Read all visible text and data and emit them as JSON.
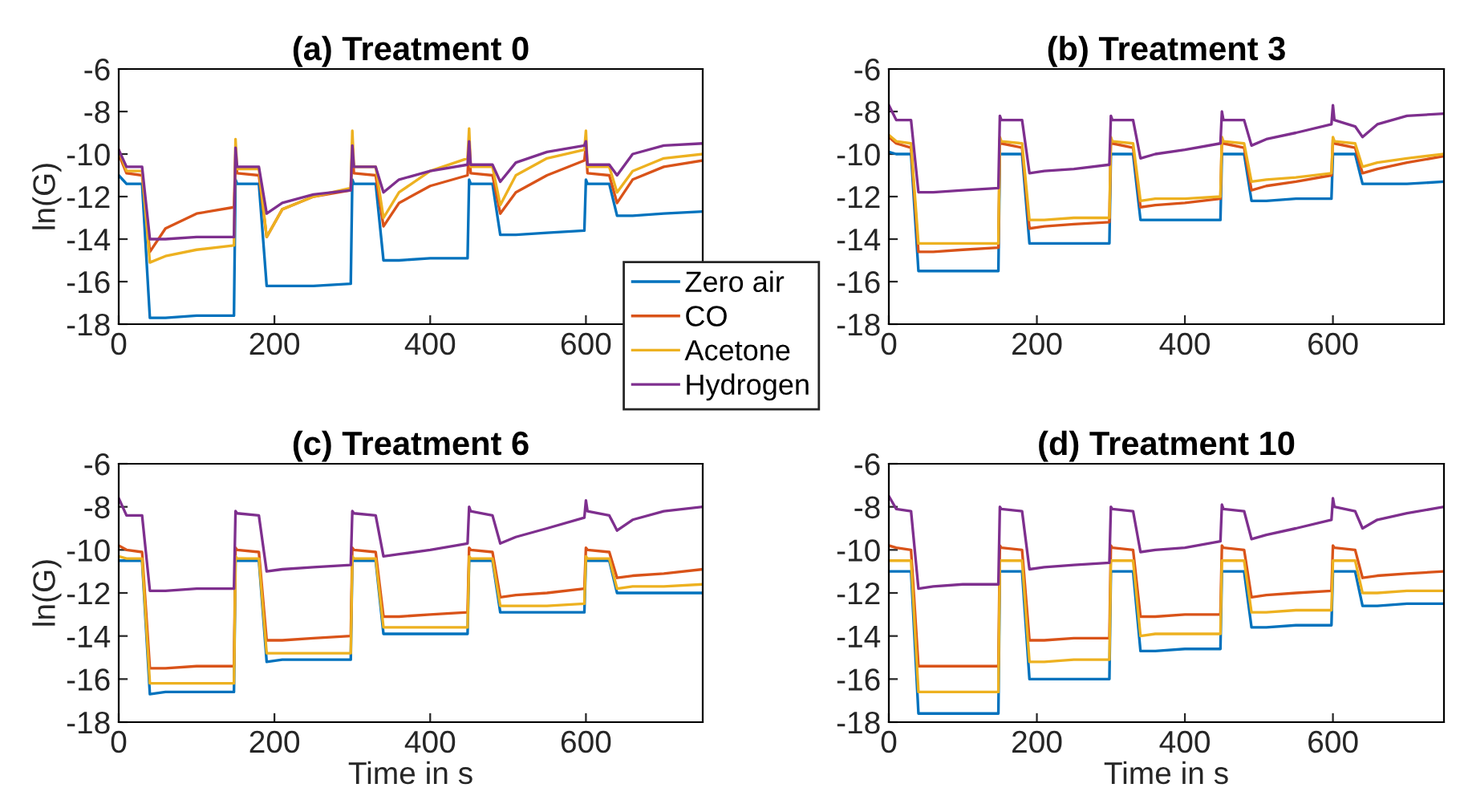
{
  "chart_data": [
    {
      "type": "line",
      "title": "(a) Treatment 0",
      "ylabel": "ln(G)",
      "xlim": [
        0,
        750
      ],
      "xticks": [
        0,
        200,
        400,
        600
      ],
      "ylim": [
        -18,
        -6
      ],
      "yticks": [
        -18,
        -16,
        -14,
        -12,
        -10,
        -8,
        -6
      ],
      "legend": "bottom right",
      "x": [
        0,
        10,
        30,
        40,
        60,
        100,
        148,
        150,
        152,
        180,
        190,
        210,
        250,
        298,
        300,
        302,
        330,
        340,
        360,
        400,
        448,
        450,
        452,
        480,
        490,
        510,
        550,
        598,
        600,
        602,
        630,
        640,
        660,
        700,
        750
      ],
      "series": [
        {
          "name": "Zero air",
          "color": "#0072bd",
          "values": [
            -11.0,
            -11.4,
            -11.4,
            -17.7,
            -17.7,
            -17.6,
            -17.6,
            -11.2,
            -11.4,
            -11.4,
            -16.2,
            -16.2,
            -16.2,
            -16.1,
            -11.2,
            -11.4,
            -11.4,
            -15.0,
            -15.0,
            -14.9,
            -14.9,
            -11.2,
            -11.4,
            -11.4,
            -13.8,
            -13.8,
            -13.7,
            -13.6,
            -11.2,
            -11.4,
            -11.4,
            -12.9,
            -12.9,
            -12.8,
            -12.7
          ]
        },
        {
          "name": "CO",
          "color": "#d95319",
          "values": [
            -10.0,
            -10.9,
            -11.0,
            -14.6,
            -13.5,
            -12.8,
            -12.5,
            -10.0,
            -10.9,
            -11.0,
            -13.9,
            -12.6,
            -12.0,
            -11.7,
            -9.6,
            -10.9,
            -11.0,
            -13.4,
            -12.3,
            -11.5,
            -11.0,
            -9.6,
            -10.9,
            -11.0,
            -12.8,
            -11.8,
            -11.0,
            -10.3,
            -9.6,
            -10.9,
            -11.0,
            -12.3,
            -11.2,
            -10.6,
            -10.3
          ]
        },
        {
          "name": "Acetone",
          "color": "#edb120",
          "values": [
            -9.8,
            -10.8,
            -10.8,
            -15.1,
            -14.8,
            -14.5,
            -14.3,
            -9.3,
            -10.7,
            -10.7,
            -13.9,
            -12.6,
            -12.0,
            -11.6,
            -8.9,
            -10.6,
            -10.6,
            -13.0,
            -11.8,
            -10.8,
            -10.2,
            -8.8,
            -10.6,
            -10.6,
            -12.4,
            -11.0,
            -10.2,
            -9.8,
            -8.9,
            -10.6,
            -10.6,
            -11.8,
            -10.8,
            -10.2,
            -10.0
          ]
        },
        {
          "name": "Hydrogen",
          "color": "#7e2f8e",
          "values": [
            -9.8,
            -10.6,
            -10.6,
            -14.0,
            -14.0,
            -13.9,
            -13.9,
            -9.7,
            -10.6,
            -10.6,
            -12.8,
            -12.3,
            -11.9,
            -11.7,
            -9.6,
            -10.6,
            -10.6,
            -11.8,
            -11.2,
            -10.8,
            -10.5,
            -9.4,
            -10.5,
            -10.5,
            -11.3,
            -10.4,
            -9.9,
            -9.6,
            -9.4,
            -10.5,
            -10.5,
            -11.0,
            -10.0,
            -9.6,
            -9.5
          ]
        }
      ]
    },
    {
      "type": "line",
      "title": "(b) Treatment 3",
      "xlim": [
        0,
        750
      ],
      "xticks": [
        0,
        200,
        400,
        600
      ],
      "ylim": [
        -18,
        -6
      ],
      "yticks": [
        -18,
        -16,
        -14,
        -12,
        -10,
        -8,
        -6
      ],
      "x": [
        0,
        10,
        30,
        40,
        60,
        100,
        148,
        150,
        152,
        180,
        190,
        210,
        250,
        298,
        300,
        302,
        330,
        340,
        360,
        400,
        448,
        450,
        452,
        480,
        490,
        510,
        550,
        598,
        600,
        602,
        630,
        640,
        660,
        700,
        750
      ],
      "series": [
        {
          "color": "#0072bd",
          "values": [
            -9.9,
            -10.0,
            -10.0,
            -15.5,
            -15.5,
            -15.5,
            -15.5,
            -10.0,
            -10.0,
            -10.0,
            -14.2,
            -14.2,
            -14.2,
            -14.2,
            -10.0,
            -10.0,
            -10.0,
            -13.1,
            -13.1,
            -13.1,
            -13.1,
            -10.0,
            -10.0,
            -10.0,
            -12.2,
            -12.2,
            -12.1,
            -12.1,
            -10.0,
            -10.0,
            -10.0,
            -11.4,
            -11.4,
            -11.4,
            -11.3
          ]
        },
        {
          "color": "#d95319",
          "values": [
            -9.2,
            -9.5,
            -9.7,
            -14.6,
            -14.6,
            -14.5,
            -14.4,
            -9.3,
            -9.5,
            -9.7,
            -13.5,
            -13.4,
            -13.3,
            -13.2,
            -9.3,
            -9.5,
            -9.7,
            -12.5,
            -12.4,
            -12.3,
            -12.1,
            -9.3,
            -9.5,
            -9.7,
            -11.7,
            -11.5,
            -11.3,
            -11.0,
            -9.3,
            -9.5,
            -9.7,
            -10.9,
            -10.7,
            -10.4,
            -10.1
          ]
        },
        {
          "color": "#edb120",
          "values": [
            -9.1,
            -9.4,
            -9.5,
            -14.2,
            -14.2,
            -14.2,
            -14.2,
            -9.2,
            -9.4,
            -9.5,
            -13.1,
            -13.1,
            -13.0,
            -13.0,
            -9.2,
            -9.4,
            -9.5,
            -12.2,
            -12.1,
            -12.1,
            -12.0,
            -9.2,
            -9.4,
            -9.5,
            -11.3,
            -11.2,
            -11.1,
            -10.9,
            -9.2,
            -9.4,
            -9.5,
            -10.6,
            -10.4,
            -10.2,
            -10.0
          ]
        },
        {
          "color": "#7e2f8e",
          "values": [
            -7.7,
            -8.4,
            -8.4,
            -11.8,
            -11.8,
            -11.7,
            -11.6,
            -8.2,
            -8.4,
            -8.4,
            -10.9,
            -10.8,
            -10.7,
            -10.5,
            -8.2,
            -8.4,
            -8.4,
            -10.2,
            -10.0,
            -9.8,
            -9.5,
            -8.0,
            -8.4,
            -8.4,
            -9.6,
            -9.3,
            -9.0,
            -8.6,
            -7.7,
            -8.4,
            -8.7,
            -9.2,
            -8.6,
            -8.2,
            -8.1
          ]
        }
      ]
    },
    {
      "type": "line",
      "title": "(c) Treatment 6",
      "ylabel": "ln(G)",
      "xlabel": "Time in s",
      "xlim": [
        0,
        750
      ],
      "xticks": [
        0,
        200,
        400,
        600
      ],
      "ylim": [
        -18,
        -6
      ],
      "yticks": [
        -18,
        -16,
        -14,
        -12,
        -10,
        -8,
        -6
      ],
      "x": [
        0,
        10,
        30,
        40,
        60,
        100,
        148,
        150,
        152,
        180,
        190,
        210,
        250,
        298,
        300,
        302,
        330,
        340,
        360,
        400,
        448,
        450,
        452,
        480,
        490,
        510,
        550,
        598,
        600,
        602,
        630,
        640,
        660,
        700,
        750
      ],
      "series": [
        {
          "color": "#0072bd",
          "values": [
            -10.5,
            -10.5,
            -10.5,
            -16.7,
            -16.6,
            -16.6,
            -16.6,
            -10.5,
            -10.5,
            -10.5,
            -15.2,
            -15.1,
            -15.1,
            -15.1,
            -10.5,
            -10.5,
            -10.5,
            -13.9,
            -13.9,
            -13.9,
            -13.9,
            -10.5,
            -10.5,
            -10.5,
            -12.9,
            -12.9,
            -12.9,
            -12.9,
            -10.5,
            -10.5,
            -10.5,
            -12.0,
            -12.0,
            -12.0,
            -12.0
          ]
        },
        {
          "color": "#d95319",
          "values": [
            -9.8,
            -10.0,
            -10.1,
            -15.5,
            -15.5,
            -15.4,
            -15.4,
            -9.9,
            -10.0,
            -10.1,
            -14.2,
            -14.2,
            -14.1,
            -14.0,
            -9.9,
            -10.0,
            -10.1,
            -13.1,
            -13.1,
            -13.0,
            -12.9,
            -9.9,
            -10.0,
            -10.1,
            -12.2,
            -12.1,
            -12.0,
            -11.8,
            -9.9,
            -10.0,
            -10.1,
            -11.3,
            -11.2,
            -11.1,
            -10.9
          ]
        },
        {
          "color": "#edb120",
          "values": [
            -10.3,
            -10.4,
            -10.4,
            -16.2,
            -16.2,
            -16.2,
            -16.2,
            -10.3,
            -10.4,
            -10.4,
            -14.8,
            -14.8,
            -14.8,
            -14.8,
            -10.3,
            -10.4,
            -10.4,
            -13.6,
            -13.6,
            -13.6,
            -13.6,
            -10.3,
            -10.4,
            -10.4,
            -12.6,
            -12.6,
            -12.6,
            -12.5,
            -10.3,
            -10.4,
            -10.4,
            -11.8,
            -11.7,
            -11.7,
            -11.6
          ]
        },
        {
          "color": "#7e2f8e",
          "values": [
            -7.6,
            -8.4,
            -8.4,
            -11.9,
            -11.9,
            -11.8,
            -11.8,
            -8.2,
            -8.3,
            -8.4,
            -11.0,
            -10.9,
            -10.8,
            -10.7,
            -8.2,
            -8.3,
            -8.4,
            -10.3,
            -10.2,
            -10.0,
            -9.7,
            -8.0,
            -8.2,
            -8.4,
            -9.7,
            -9.4,
            -9.0,
            -8.5,
            -7.7,
            -8.2,
            -8.4,
            -9.1,
            -8.6,
            -8.2,
            -8.0
          ]
        }
      ]
    },
    {
      "type": "line",
      "title": "(d) Treatment 10",
      "xlabel": "Time in s",
      "xlim": [
        0,
        750
      ],
      "xticks": [
        0,
        200,
        400,
        600
      ],
      "ylim": [
        -18,
        -6
      ],
      "yticks": [
        -18,
        -16,
        -14,
        -12,
        -10,
        -8,
        -6
      ],
      "x": [
        0,
        10,
        30,
        40,
        60,
        100,
        148,
        150,
        152,
        180,
        190,
        210,
        250,
        298,
        300,
        302,
        330,
        340,
        360,
        400,
        448,
        450,
        452,
        480,
        490,
        510,
        550,
        598,
        600,
        602,
        630,
        640,
        660,
        700,
        750
      ],
      "series": [
        {
          "color": "#0072bd",
          "values": [
            -11.0,
            -11.0,
            -11.0,
            -17.6,
            -17.6,
            -17.6,
            -17.6,
            -11.0,
            -11.0,
            -11.0,
            -16.0,
            -16.0,
            -16.0,
            -16.0,
            -11.0,
            -11.0,
            -11.0,
            -14.7,
            -14.7,
            -14.6,
            -14.6,
            -11.0,
            -11.0,
            -11.0,
            -13.6,
            -13.6,
            -13.5,
            -13.5,
            -11.0,
            -11.0,
            -11.0,
            -12.6,
            -12.6,
            -12.5,
            -12.5
          ]
        },
        {
          "color": "#d95319",
          "values": [
            -9.8,
            -9.9,
            -10.0,
            -15.4,
            -15.4,
            -15.4,
            -15.4,
            -9.8,
            -9.9,
            -10.0,
            -14.2,
            -14.2,
            -14.1,
            -14.1,
            -9.8,
            -9.9,
            -10.0,
            -13.1,
            -13.1,
            -13.0,
            -13.0,
            -9.8,
            -9.9,
            -10.0,
            -12.2,
            -12.1,
            -12.0,
            -11.9,
            -9.8,
            -9.9,
            -10.0,
            -11.3,
            -11.2,
            -11.1,
            -11.0
          ]
        },
        {
          "color": "#edb120",
          "values": [
            -10.5,
            -10.5,
            -10.5,
            -16.6,
            -16.6,
            -16.6,
            -16.6,
            -10.5,
            -10.5,
            -10.5,
            -15.2,
            -15.2,
            -15.1,
            -15.1,
            -10.5,
            -10.5,
            -10.5,
            -14.0,
            -13.9,
            -13.9,
            -13.9,
            -10.5,
            -10.5,
            -10.5,
            -12.9,
            -12.9,
            -12.8,
            -12.8,
            -10.5,
            -10.5,
            -10.5,
            -12.0,
            -12.0,
            -11.9,
            -11.9
          ]
        },
        {
          "color": "#7e2f8e",
          "values": [
            -7.5,
            -8.1,
            -8.2,
            -11.8,
            -11.7,
            -11.6,
            -11.6,
            -8.0,
            -8.1,
            -8.2,
            -10.9,
            -10.8,
            -10.7,
            -10.6,
            -8.0,
            -8.1,
            -8.2,
            -10.1,
            -10.0,
            -9.9,
            -9.6,
            -7.9,
            -8.1,
            -8.2,
            -9.5,
            -9.3,
            -9.0,
            -8.6,
            -7.6,
            -8.0,
            -8.2,
            -9.0,
            -8.6,
            -8.3,
            -8.0
          ]
        }
      ]
    }
  ]
}
